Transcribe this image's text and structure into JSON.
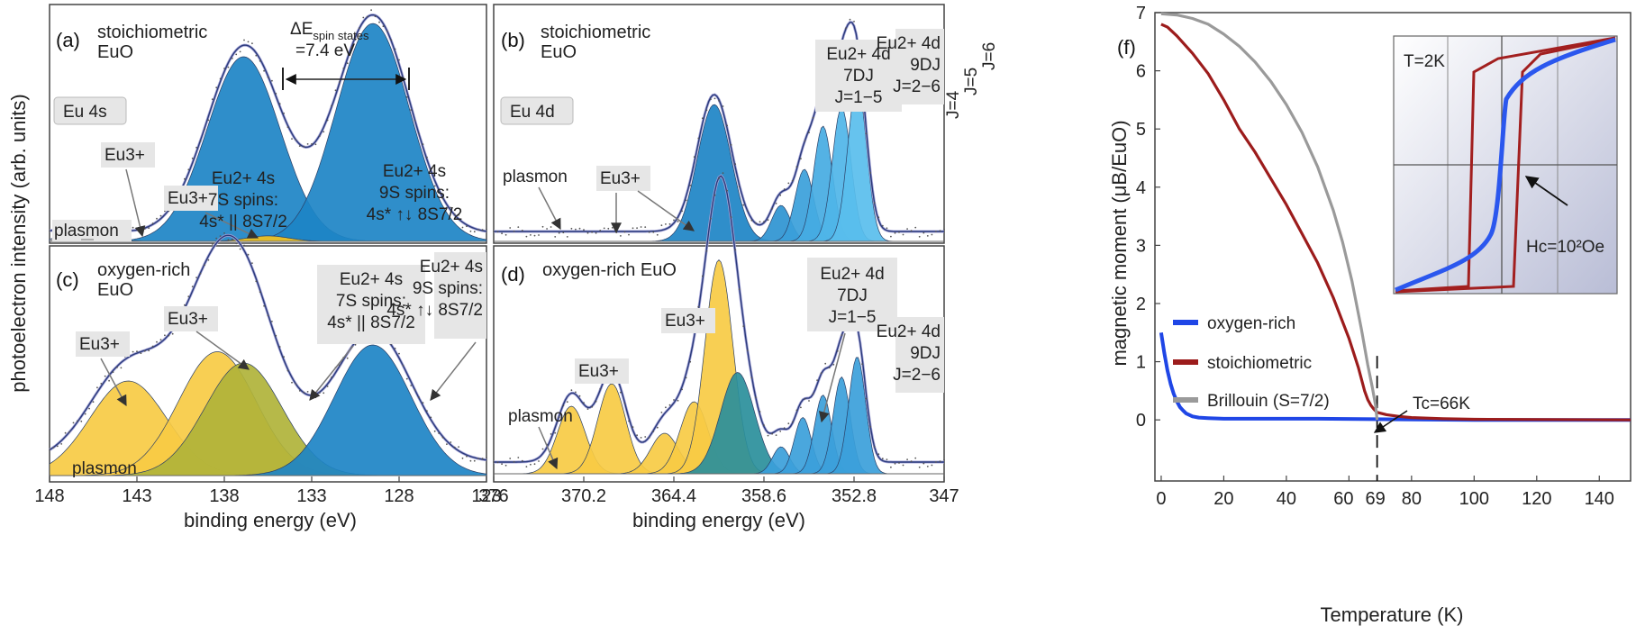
{
  "figure": {
    "y_axis_label_left": "photoelectron intensity (arb. units)",
    "x_axis_label_eu4s": "binding energy (eV)",
    "x_axis_label_eu4d": "binding energy (eV)",
    "x_axis_label_temp": "Temperature (K)",
    "y_axis_label_moment": "magnetic moment (μB/EuO)"
  },
  "panels": {
    "a": {
      "letter": "(a)",
      "title1": "stoichiometric",
      "title2": "EuO",
      "badge": "Eu 4s",
      "delta_label": "ΔE",
      "delta_sub": "spin states",
      "delta_val": "=7.4 eV",
      "eu3_label": "Eu3+",
      "eu3b_label": "Eu3+",
      "plasmon": "plasmon",
      "s7_l1": "Eu2+ 4s",
      "s7_l2": "7S spins:",
      "s7_l3": "4s* || 8S7/2",
      "s9_l1": "Eu2+ 4s",
      "s9_l2": "9S spins:",
      "s9_l3": "4s* ↑↓ 8S7/2"
    },
    "b": {
      "letter": "(b)",
      "title1": "stoichiometric",
      "title2": "EuO",
      "badge": "Eu 4d",
      "d7_l1": "Eu2+ 4d",
      "d7_l2": "7DJ",
      "d7_l3": "J=1−5",
      "d9_l1": "Eu2+ 4d",
      "d9_l2": "9DJ",
      "d9_l3": "J=2−6",
      "j4": "J=4",
      "j5": "J=5",
      "j6": "J=6",
      "plasmon": "plasmon",
      "eu3_label": "Eu3+"
    },
    "c": {
      "letter": "(c)",
      "title1": "oxygen-rich",
      "title2": "EuO",
      "eu3a": "Eu3+",
      "eu3b": "Eu3+",
      "plasmon": "plasmon",
      "s7_l1": "Eu2+ 4s",
      "s7_l2": "7S spins:",
      "s7_l3": "4s* || 8S7/2",
      "s9_l1": "Eu2+ 4s",
      "s9_l2": "9S spins:",
      "s9_l3": "4s* ↑↓ 8S7/2"
    },
    "d": {
      "letter": "(d)",
      "title": "oxygen-rich EuO",
      "eu3a": "Eu3+",
      "eu3b": "Eu3+",
      "plasmon": "plasmon",
      "d7_l1": "Eu2+ 4d",
      "d7_l2": "7DJ",
      "d7_l3": "J=1−5",
      "d9_l1": "Eu2+ 4d",
      "d9_l2": "9DJ",
      "d9_l3": "J=2−6"
    },
    "f": {
      "letter": "(f)",
      "inset_label": "T=2K",
      "hc_label": "Hc=10²Oe",
      "tc_label": "Tc=66K"
    }
  },
  "chart_data": [
    {
      "type": "area",
      "panel": "a+c",
      "xlabel": "binding energy (eV)",
      "ylabel": "photoelectron intensity (arb. units)",
      "xlim": [
        148,
        123
      ],
      "x_ticks": [
        "148",
        "143",
        "138",
        "133",
        "128",
        "123"
      ],
      "series_a": [
        {
          "name": "Eu2+ 4s 7S",
          "center": 136.9,
          "height": 1.0,
          "color": "#1d84c5"
        },
        {
          "name": "Eu2+ 4s 9S",
          "center": 129.5,
          "height": 1.18,
          "color": "#1d84c5"
        },
        {
          "name": "Eu3+",
          "center": 135.5,
          "height": 0.03,
          "color": "#f4c21d"
        },
        {
          "name": "plasmon",
          "center": 146,
          "height": 0.05,
          "color": "#aaaaaa"
        }
      ],
      "series_c": [
        {
          "name": "Eu3+ (143)",
          "center": 143.5,
          "height": 0.42,
          "color": "#f7cb44"
        },
        {
          "name": "Eu3+ (138)",
          "center": 138.4,
          "height": 0.55,
          "color": "#f7cb44"
        },
        {
          "name": "Eu2+ 4s 7S",
          "center": 136.9,
          "height": 0.5,
          "color": "#b0b33a"
        },
        {
          "name": "Eu2+ 4s 9S",
          "center": 129.5,
          "height": 0.58,
          "color": "#1d84c5"
        }
      ]
    },
    {
      "type": "area",
      "panel": "b+d",
      "xlabel": "binding energy (eV)",
      "xlim": [
        376,
        347
      ],
      "x_ticks": [
        "376",
        "370.2",
        "364.4",
        "358.6",
        "352.8",
        "347"
      ],
      "series_b": [
        {
          "name": "Eu2+ 4d 7DJ",
          "center": 361.8,
          "height": 0.95
        },
        {
          "name": "J=2",
          "center": 357.5,
          "height": 0.25
        },
        {
          "name": "J=3",
          "center": 356.0,
          "height": 0.5
        },
        {
          "name": "J=4",
          "center": 354.8,
          "height": 0.8
        },
        {
          "name": "J=5",
          "center": 353.6,
          "height": 0.93
        },
        {
          "name": "J=6",
          "center": 352.6,
          "height": 1.1
        }
      ],
      "series_d": [
        {
          "name": "Eu3+ a",
          "center": 371.0,
          "height": 0.3
        },
        {
          "name": "Eu3+ b",
          "center": 368.4,
          "height": 0.4
        },
        {
          "name": "Eu3+ c",
          "center": 365.0,
          "height": 0.18
        },
        {
          "name": "Eu3+ d",
          "center": 363.1,
          "height": 0.32
        },
        {
          "name": "Eu3+ e",
          "center": 361.5,
          "height": 0.95
        },
        {
          "name": "Eu2+ 7DJ",
          "center": 360.3,
          "height": 0.45
        },
        {
          "name": "J=2",
          "center": 357.5,
          "height": 0.12
        },
        {
          "name": "J=3",
          "center": 356.1,
          "height": 0.25
        },
        {
          "name": "J=4",
          "center": 354.8,
          "height": 0.35
        },
        {
          "name": "J=5",
          "center": 353.6,
          "height": 0.43
        },
        {
          "name": "J=6",
          "center": 352.6,
          "height": 0.52
        }
      ]
    },
    {
      "type": "line",
      "panel": "f",
      "xlabel": "Temperature (K)",
      "ylabel": "magnetic moment (μB/EuO)",
      "xlim": [
        -2,
        150
      ],
      "ylim": [
        -1.05,
        7
      ],
      "x_ticks": [
        "0",
        "20",
        "40",
        "60",
        "69",
        "80",
        "100",
        "120",
        "140"
      ],
      "x_tick_vals": [
        0,
        20,
        40,
        60,
        69,
        80,
        100,
        120,
        140
      ],
      "y_ticks": [
        "0",
        "1",
        "2",
        "3",
        "4",
        "5",
        "6",
        "7"
      ],
      "series": [
        {
          "name": "oxygen-rich",
          "color": "#1f46e6",
          "x": [
            0,
            1,
            2,
            3,
            4,
            5,
            6,
            7,
            8,
            10,
            12,
            15,
            20,
            30,
            50,
            100,
            150
          ],
          "y": [
            1.5,
            1.15,
            0.85,
            0.62,
            0.45,
            0.32,
            0.22,
            0.16,
            0.11,
            0.06,
            0.04,
            0.03,
            0.02,
            0.02,
            0.02,
            0.0,
            0.0
          ]
        },
        {
          "name": "stoichiometric",
          "color": "#9c1c1c",
          "x": [
            0,
            2,
            5,
            10,
            15,
            20,
            25,
            30,
            35,
            40,
            45,
            50,
            55,
            60,
            63,
            65,
            66,
            67,
            68,
            69,
            72,
            76,
            80,
            90,
            100,
            150
          ],
          "y": [
            6.8,
            6.75,
            6.6,
            6.3,
            5.95,
            5.5,
            5.0,
            4.6,
            4.15,
            3.7,
            3.2,
            2.7,
            2.1,
            1.4,
            0.9,
            0.5,
            0.35,
            0.25,
            0.18,
            0.13,
            0.09,
            0.06,
            0.04,
            0.02,
            0.01,
            0.0
          ]
        },
        {
          "name": "Brillouin (S=7/2)",
          "color": "#9a9a9a",
          "x": [
            0,
            5,
            10,
            15,
            20,
            25,
            30,
            35,
            40,
            45,
            50,
            55,
            58,
            61,
            64,
            66,
            67.5,
            68.5,
            69
          ],
          "y": [
            6.98,
            6.96,
            6.9,
            6.8,
            6.63,
            6.42,
            6.15,
            5.82,
            5.42,
            4.94,
            4.35,
            3.6,
            3.05,
            2.38,
            1.55,
            0.95,
            0.55,
            0.25,
            0.0
          ]
        }
      ],
      "legend": [
        "oxygen-rich",
        "stoichiometric",
        "Brillouin (S=7/2)"
      ],
      "annotations": [
        "Tc=66K"
      ],
      "inset": {
        "label": "T=2K",
        "annotation": "Hc=10²Oe",
        "series": [
          "blue hysteresis (oxygen-rich)",
          "red hysteresis (stoichiometric)"
        ]
      }
    }
  ]
}
